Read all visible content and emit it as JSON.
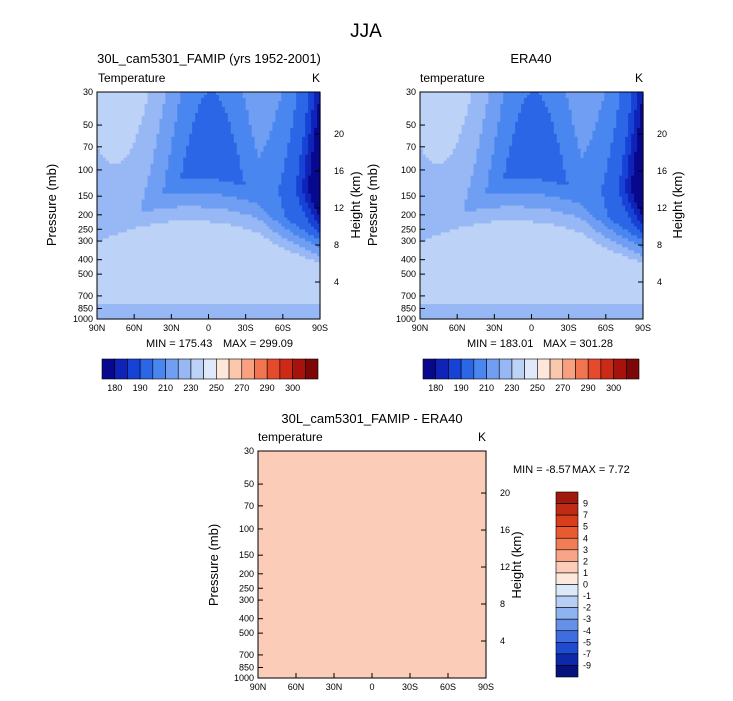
{
  "figure_title": "JJA",
  "chart_data": [
    {
      "type": "heatmap",
      "subtype": "filled-contour",
      "title": "30L_cam5301_FAMIP (yrs 1952-2001)",
      "left_label": "Temperature",
      "units": "K",
      "xlabel": "",
      "ylabel": "Pressure (mb)",
      "y2label": "Height (km)",
      "x_ticks": [
        "90N",
        "60N",
        "30N",
        "0",
        "30S",
        "60S",
        "90S"
      ],
      "y_ticks": [
        "30",
        "50",
        "70",
        "100",
        "150",
        "200",
        "250",
        "300",
        "400",
        "500",
        "700",
        "850",
        "1000"
      ],
      "y2_ticks": [
        "20",
        "16",
        "12",
        "8",
        "4"
      ],
      "ylim": [
        1000,
        30
      ],
      "min_label": "MIN = 175.43",
      "max_label": "MAX = 299.09",
      "colorbar_ticks": [
        "180",
        "190",
        "210",
        "230",
        "250",
        "270",
        "290",
        "300"
      ]
    },
    {
      "type": "heatmap",
      "subtype": "filled-contour",
      "title": "ERA40",
      "left_label": "temperature",
      "units": "K",
      "xlabel": "",
      "ylabel": "Pressure (mb)",
      "y2label": "Height (km)",
      "x_ticks": [
        "90N",
        "60N",
        "30N",
        "0",
        "30S",
        "60S",
        "90S"
      ],
      "y_ticks": [
        "30",
        "50",
        "70",
        "100",
        "150",
        "200",
        "250",
        "300",
        "400",
        "500",
        "700",
        "850",
        "1000"
      ],
      "y2_ticks": [
        "20",
        "16",
        "12",
        "8",
        "4"
      ],
      "ylim": [
        1000,
        30
      ],
      "min_label": "MIN = 183.01",
      "max_label": "MAX = 301.28",
      "colorbar_ticks": [
        "180",
        "190",
        "210",
        "230",
        "250",
        "270",
        "290",
        "300"
      ]
    },
    {
      "type": "heatmap",
      "subtype": "filled-contour",
      "title": "30L_cam5301_FAMIP - ERA40",
      "left_label": "temperature",
      "units": "K",
      "xlabel": "",
      "ylabel": "Pressure (mb)",
      "y2label": "Height (km)",
      "x_ticks": [
        "90N",
        "60N",
        "30N",
        "0",
        "30S",
        "60S",
        "90S"
      ],
      "y_ticks": [
        "30",
        "50",
        "70",
        "100",
        "150",
        "200",
        "250",
        "300",
        "400",
        "500",
        "700",
        "850",
        "1000"
      ],
      "y2_ticks": [
        "20",
        "16",
        "12",
        "8",
        "4"
      ],
      "ylim": [
        1000,
        30
      ],
      "min_label": "MIN = -8.57",
      "max_label": "MAX =  7.72",
      "colorbar_ticks": [
        "9",
        "7",
        "5",
        "4",
        "3",
        "2",
        "1",
        "0",
        "-1",
        "-2",
        "-3",
        "-4",
        "-5",
        "-7",
        "-9"
      ]
    }
  ],
  "palettes": {
    "temperature": [
      "#08088f",
      "#0f23b8",
      "#1642d6",
      "#2a66e6",
      "#4a86ef",
      "#6f9ef3",
      "#97b8f5",
      "#bcd2f7",
      "#dfe9fb",
      "#fde7da",
      "#fbc7ad",
      "#f8a07f",
      "#f27552",
      "#e64a2c",
      "#cc2a17",
      "#a6120c",
      "#7d0706"
    ],
    "difference": [
      "#a01b0e",
      "#c12a14",
      "#d83d1c",
      "#e85a32",
      "#f17d56",
      "#f7a586",
      "#fbcdb8",
      "#fde8dc",
      "#dce9fb",
      "#b7cff5",
      "#8fb2f0",
      "#6590e8",
      "#3d6ddf",
      "#1f4bd0",
      "#0d28a8",
      "#07137c"
    ]
  }
}
